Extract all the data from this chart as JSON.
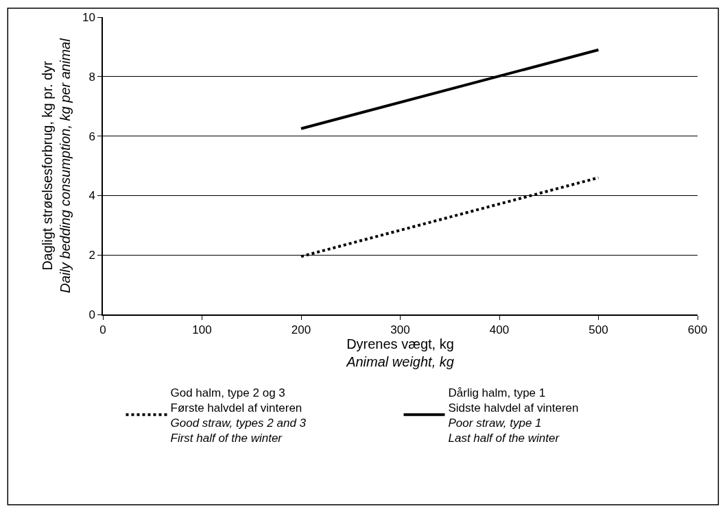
{
  "chart_data": {
    "type": "line",
    "xlabel": "Dyrenes vægt, kg\nAnimal weight, kg",
    "ylabel": "Dagligt strøelsesforbrug, kg pr. dyr\nDaily bedding consumption, kg per animal",
    "x": [
      200,
      500
    ],
    "series": [
      {
        "name": "God halm, type 2 og 3\nFørste halvdel af vinteren\nGood straw, types 2 and 3\nFirst half of the winter",
        "color": "#000000",
        "values": [
          1.95,
          4.6
        ],
        "line_style": "dotted"
      },
      {
        "name": "Dårlig halm, type 1\nSidste halvdel af vinteren\nPoor straw, type 1\nLast half of the winter",
        "color": "#000000",
        "values": [
          6.25,
          8.9
        ],
        "line_style": "solid"
      }
    ],
    "xlim": [
      0,
      600
    ],
    "xticks": [
      0,
      100,
      200,
      300,
      400,
      500,
      600
    ],
    "ylim": [
      0,
      10
    ],
    "yticks": [
      0,
      2,
      4,
      6,
      8,
      10
    ],
    "grid": "y",
    "legend": "bottom",
    "marker": "none"
  }
}
